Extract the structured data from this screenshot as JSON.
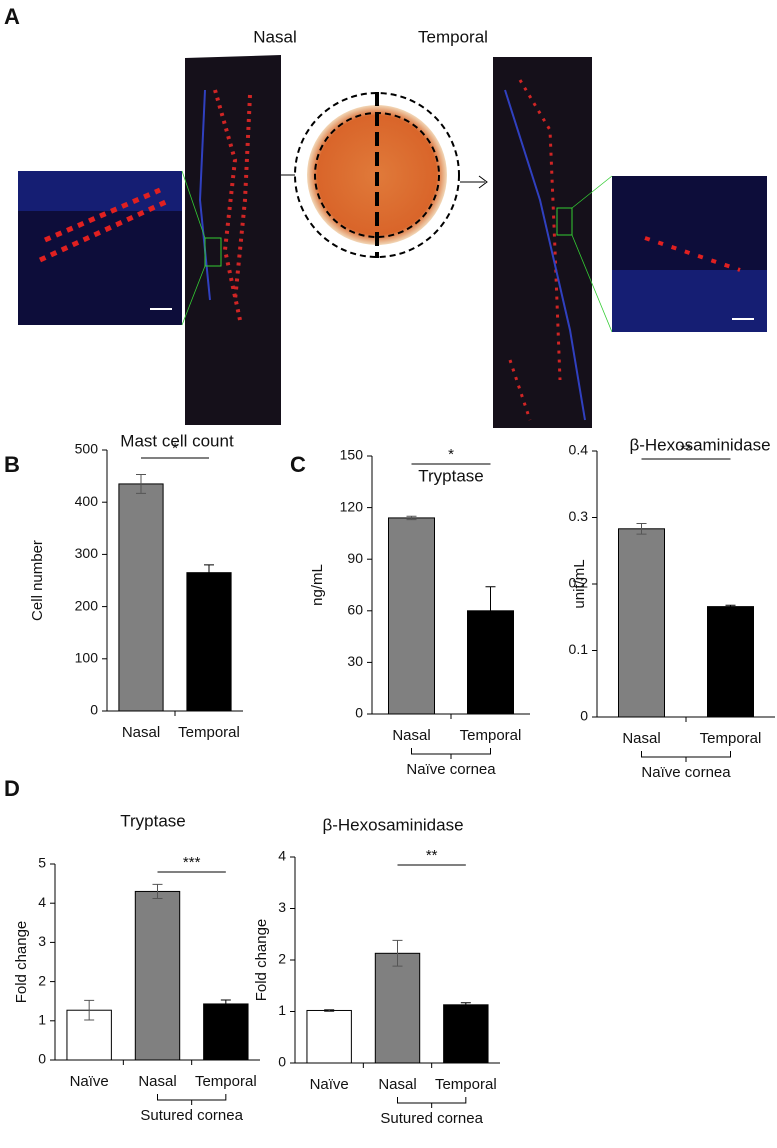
{
  "panel_a": {
    "label": "A",
    "left_title": "Nasal",
    "right_title": "Temporal"
  },
  "chart_data": [
    {
      "type": "bar",
      "panel": "B",
      "title": "Mast cell count",
      "y_label": "Cell number",
      "categories": [
        "Nasal",
        "Temporal"
      ],
      "values": [
        435,
        265
      ],
      "errors": [
        18,
        15
      ],
      "colors": [
        "#808080",
        "#000000"
      ],
      "ylim": [
        0,
        500
      ],
      "yticks": [
        0,
        100,
        200,
        300,
        400,
        500
      ],
      "significance": "*"
    },
    {
      "type": "bar",
      "panel": "C",
      "title": "Tryptase",
      "y_label": "ng/mL",
      "categories": [
        "Nasal",
        "Temporal"
      ],
      "values": [
        114,
        60
      ],
      "errors": [
        1,
        14
      ],
      "colors": [
        "#808080",
        "#000000"
      ],
      "ylim": [
        0,
        150
      ],
      "yticks": [
        0,
        30,
        60,
        90,
        120,
        150
      ],
      "significance": "*",
      "group_label": "Naïve cornea"
    },
    {
      "type": "bar",
      "title": "β-Hexosaminidase",
      "y_label": "unit/mL",
      "categories": [
        "Nasal",
        "Temporal"
      ],
      "values": [
        0.283,
        0.166
      ],
      "errors": [
        0.008,
        0.002
      ],
      "colors": [
        "#808080",
        "#000000"
      ],
      "ylim": [
        0,
        0.4
      ],
      "yticks": [
        0,
        0.1,
        0.2,
        0.3,
        0.4
      ],
      "significance": "**",
      "group_label": "Naïve cornea"
    },
    {
      "type": "bar",
      "panel": "D",
      "title": "Tryptase",
      "y_label": "Fold change",
      "categories": [
        "Naïve",
        "Nasal",
        "Temporal"
      ],
      "values": [
        1.27,
        4.3,
        1.43
      ],
      "errors": [
        0.25,
        0.18,
        0.1
      ],
      "colors": [
        "#ffffff",
        "#808080",
        "#000000"
      ],
      "ylim": [
        0,
        5
      ],
      "yticks": [
        0,
        1,
        2,
        3,
        4,
        5
      ],
      "significance": "***",
      "group_label": "Sutured cornea"
    },
    {
      "type": "bar",
      "title": "β-Hexosaminidase",
      "y_label": "Fold change",
      "categories": [
        "Naïve",
        "Nasal",
        "Temporal"
      ],
      "values": [
        1.02,
        2.13,
        1.13
      ],
      "errors": [
        0.02,
        0.25,
        0.04
      ],
      "colors": [
        "#ffffff",
        "#808080",
        "#000000"
      ],
      "ylim": [
        0,
        4
      ],
      "yticks": [
        0,
        1,
        2,
        3,
        4
      ],
      "significance": "**",
      "group_label": "Sutured cornea"
    }
  ]
}
